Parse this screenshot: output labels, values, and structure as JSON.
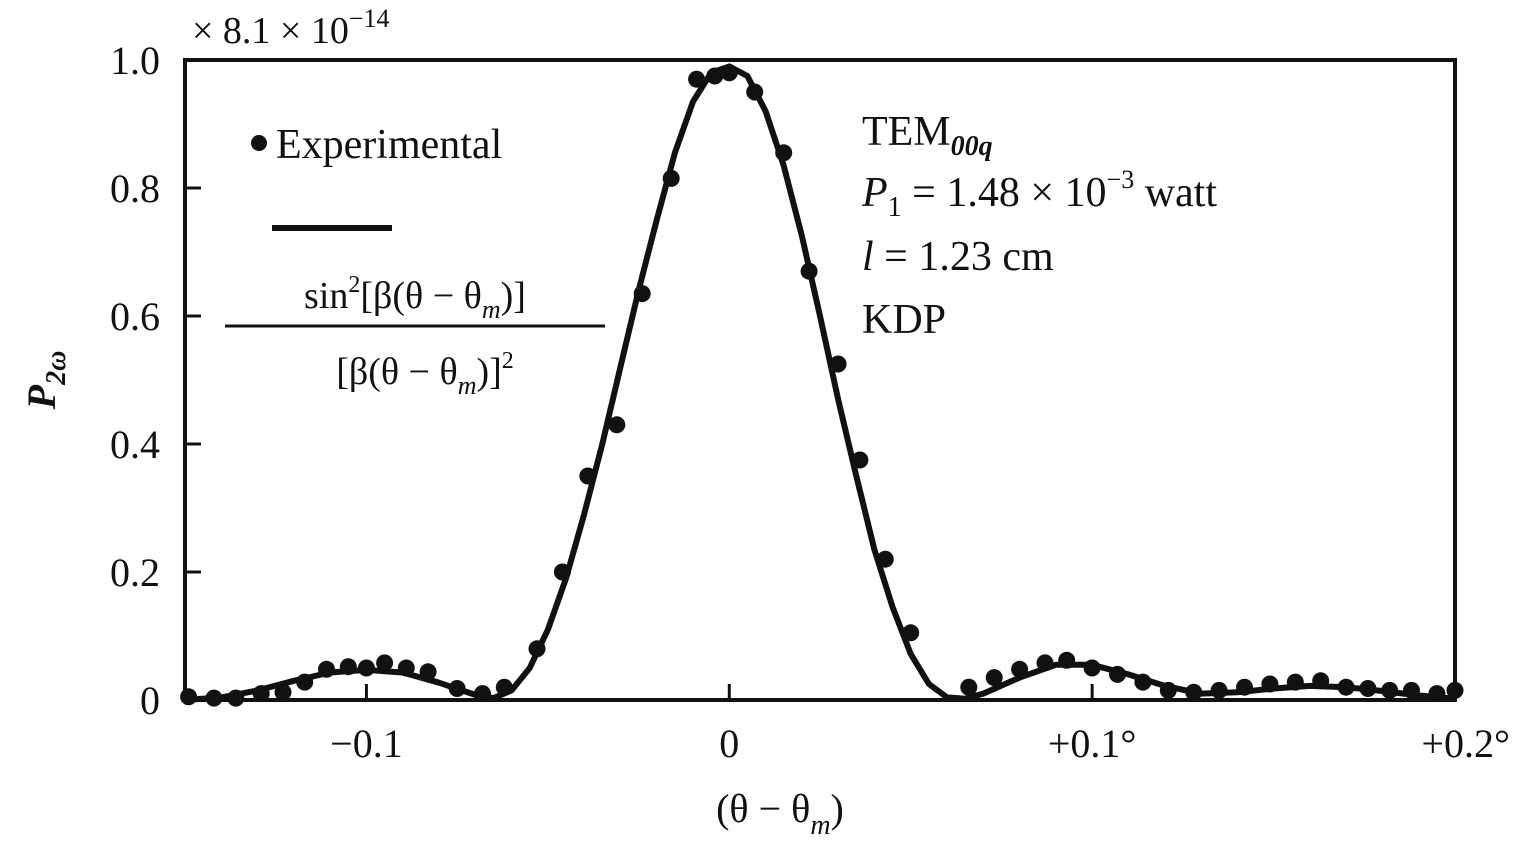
{
  "chart_data": {
    "type": "scatter",
    "title": "",
    "xlabel_parts": [
      "(θ − θ",
      "m",
      ")"
    ],
    "ylabel_parts": [
      "P",
      "2ω"
    ],
    "scale_note_parts": [
      "× 8.1 × 10",
      "−14"
    ],
    "xlim": [
      -0.15,
      0.2
    ],
    "ylim": [
      0,
      1.0
    ],
    "grid": false,
    "x_ticks": [
      {
        "value": -0.1,
        "label": "−0.1"
      },
      {
        "value": 0,
        "label": "0"
      },
      {
        "value": 0.1,
        "label": "+0.1°"
      },
      {
        "value": 0.2,
        "label": "+0.2°"
      }
    ],
    "y_ticks": [
      {
        "value": 0,
        "label": "0"
      },
      {
        "value": 0.2,
        "label": "0.2"
      },
      {
        "value": 0.4,
        "label": "0.4"
      },
      {
        "value": 0.6,
        "label": "0.6"
      },
      {
        "value": 0.8,
        "label": "0.8"
      },
      {
        "value": 1.0,
        "label": "1.0"
      }
    ],
    "legend": {
      "placement": "upper-left",
      "experimental_label": "Experimental",
      "curve_numerator_parts": [
        "sin",
        "2",
        "[β(θ − θ",
        "m",
        ")]"
      ],
      "curve_denominator_parts": [
        "[β(θ − θ",
        "m",
        ")]",
        "2"
      ]
    },
    "annotation_lines": [
      {
        "parts": [
          "TEM",
          "00q"
        ]
      },
      {
        "parts": [
          "P",
          "1",
          " = 1.48 × 10",
          "−3",
          " watt"
        ]
      },
      {
        "parts": [
          "l",
          " = 1.23 cm"
        ]
      },
      {
        "parts": [
          "KDP"
        ]
      }
    ],
    "series": [
      {
        "name": "Experimental",
        "kind": "points",
        "x": [
          -0.149,
          -0.142,
          -0.136,
          -0.129,
          -0.123,
          -0.117,
          -0.111,
          -0.105,
          -0.1,
          -0.095,
          -0.089,
          -0.083,
          -0.075,
          -0.068,
          -0.062,
          -0.053,
          -0.046,
          -0.039,
          -0.031,
          -0.024,
          -0.016,
          -0.009,
          -0.004,
          0.0,
          0.007,
          0.015,
          0.022,
          0.03,
          0.036,
          0.043,
          0.05,
          0.066,
          0.073,
          0.08,
          0.087,
          0.093,
          0.1,
          0.107,
          0.114,
          0.121,
          0.128,
          0.135,
          0.142,
          0.149,
          0.156,
          0.163,
          0.17,
          0.176,
          0.182,
          0.188,
          0.195,
          0.2
        ],
        "y": [
          0.005,
          0.003,
          0.003,
          0.01,
          0.012,
          0.028,
          0.048,
          0.052,
          0.05,
          0.058,
          0.05,
          0.044,
          0.018,
          0.01,
          0.02,
          0.08,
          0.2,
          0.35,
          0.43,
          0.635,
          0.815,
          0.97,
          0.975,
          0.98,
          0.95,
          0.855,
          0.67,
          0.525,
          0.375,
          0.22,
          0.105,
          0.02,
          0.035,
          0.048,
          0.058,
          0.062,
          0.05,
          0.04,
          0.028,
          0.015,
          0.012,
          0.015,
          0.02,
          0.025,
          0.028,
          0.03,
          0.02,
          0.018,
          0.015,
          0.015,
          0.01,
          0.015
        ]
      },
      {
        "name": "sin²[β(θ − θm)]/[β(θ − θm)]²",
        "kind": "curve",
        "x": [
          -0.15,
          -0.14,
          -0.13,
          -0.12,
          -0.11,
          -0.1,
          -0.09,
          -0.08,
          -0.07,
          -0.065,
          -0.06,
          -0.055,
          -0.05,
          -0.045,
          -0.04,
          -0.035,
          -0.03,
          -0.025,
          -0.02,
          -0.015,
          -0.01,
          -0.005,
          0.0,
          0.005,
          0.01,
          0.015,
          0.02,
          0.025,
          0.03,
          0.035,
          0.04,
          0.045,
          0.05,
          0.055,
          0.06,
          0.065,
          0.07,
          0.08,
          0.09,
          0.1,
          0.11,
          0.12,
          0.13,
          0.14,
          0.15,
          0.16,
          0.17,
          0.18,
          0.19,
          0.2
        ],
        "y": [
          0.0,
          0.004,
          0.015,
          0.03,
          0.043,
          0.047,
          0.043,
          0.027,
          0.008,
          0.003,
          0.015,
          0.05,
          0.11,
          0.19,
          0.29,
          0.4,
          0.52,
          0.64,
          0.75,
          0.855,
          0.935,
          0.98,
          0.99,
          0.975,
          0.92,
          0.835,
          0.725,
          0.6,
          0.47,
          0.35,
          0.235,
          0.145,
          0.072,
          0.025,
          0.004,
          0.002,
          0.01,
          0.035,
          0.055,
          0.055,
          0.04,
          0.022,
          0.01,
          0.012,
          0.018,
          0.022,
          0.02,
          0.014,
          0.007,
          0.002
        ]
      }
    ]
  }
}
